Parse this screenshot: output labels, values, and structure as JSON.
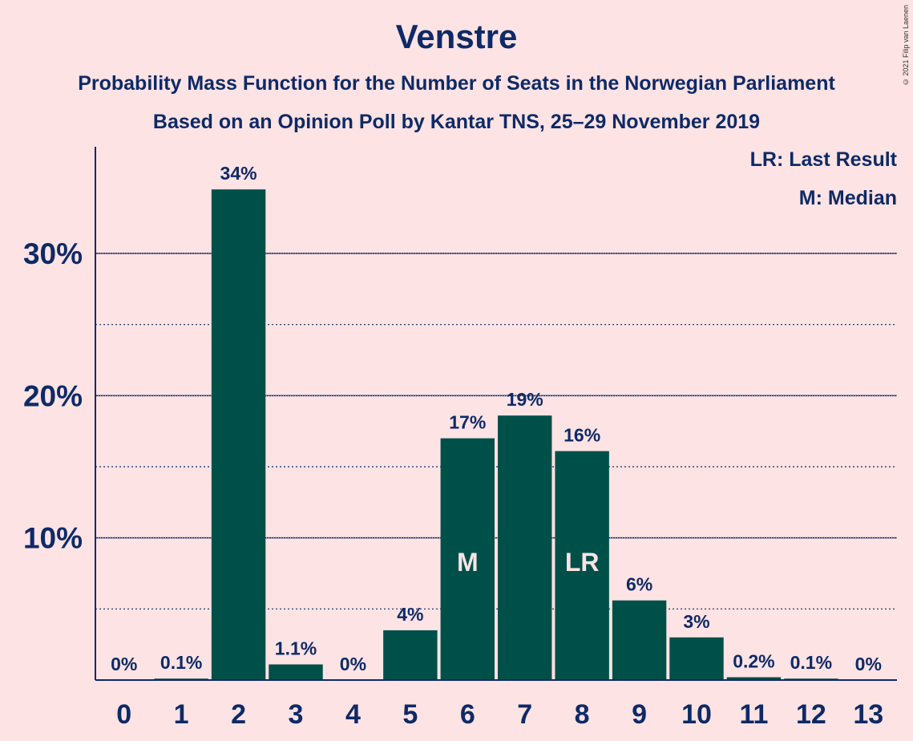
{
  "chart_data": {
    "type": "bar",
    "title": "Venstre",
    "subtitle_lines": [
      "Probability Mass Function for the Number of Seats in the Norwegian Parliament",
      "Based on an Opinion Poll by Kantar TNS, 25–29 November 2019"
    ],
    "categories": [
      "0",
      "1",
      "2",
      "3",
      "4",
      "5",
      "6",
      "7",
      "8",
      "9",
      "10",
      "11",
      "12",
      "13"
    ],
    "values": [
      0,
      0.1,
      34.5,
      1.1,
      0,
      3.5,
      17.0,
      18.6,
      16.1,
      5.6,
      3.0,
      0.2,
      0.1,
      0
    ],
    "value_labels": [
      "0%",
      "0.1%",
      "34%",
      "1.1%",
      "0%",
      "4%",
      "17%",
      "19%",
      "16%",
      "6%",
      "3%",
      "0.2%",
      "0.1%",
      "0%"
    ],
    "bar_markers": {
      "6": "M",
      "8": "LR"
    },
    "ylim": [
      0,
      37.5
    ],
    "y_ticks_major": [
      10,
      20,
      30
    ],
    "y_tick_labels": [
      "10%",
      "20%",
      "30%"
    ],
    "y_ticks_minor": [
      5,
      15,
      25
    ],
    "legend": [
      "LR: Last Result",
      "M: Median"
    ],
    "legend_position": "top-right",
    "colors": {
      "bar": "#00504a",
      "text": "#0e2a66",
      "background": "#fde3e4",
      "grid": "#0e2a66",
      "bar_marker_text": "#fde3e4"
    }
  },
  "copyright": "© 2021 Filip van Laenen"
}
